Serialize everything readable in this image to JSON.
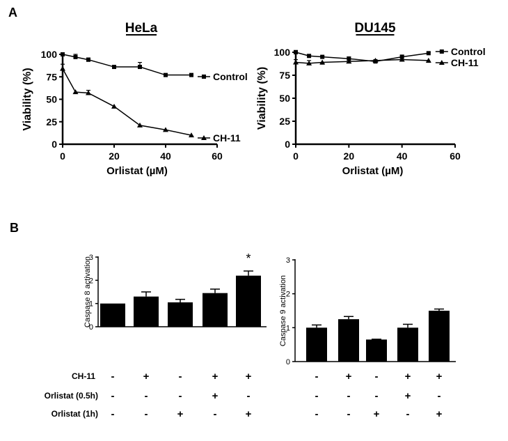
{
  "panels": {
    "a": "A",
    "b": "B"
  },
  "chart_data": [
    {
      "type": "line",
      "title": "HeLa",
      "xlabel": "Orlistat (µM)",
      "ylabel": "Viability (%)",
      "xlim": [
        0,
        60
      ],
      "ylim": [
        0,
        100
      ],
      "xticks": [
        "0",
        "20",
        "40",
        "60"
      ],
      "yticks": [
        "0",
        "25",
        "50",
        "75",
        "100"
      ],
      "series": [
        {
          "name": "Control",
          "marker": "square",
          "x": [
            0,
            5,
            10,
            20,
            30,
            40,
            50
          ],
          "y": [
            100,
            97,
            94,
            86,
            86,
            77,
            77
          ],
          "err": [
            0,
            3,
            2,
            1.5,
            5,
            1,
            1
          ]
        },
        {
          "name": "CH-11",
          "marker": "triangle",
          "x": [
            0,
            5,
            10,
            20,
            30,
            40,
            50
          ],
          "y": [
            84,
            58,
            57,
            42,
            21,
            16,
            10
          ],
          "err": [
            5,
            1,
            3,
            1,
            1,
            1,
            1
          ]
        }
      ]
    },
    {
      "type": "line",
      "title": "DU145",
      "xlabel": "Orlistat (µM)",
      "ylabel": "Viability (%)",
      "xlim": [
        0,
        60
      ],
      "ylim": [
        0,
        100
      ],
      "xticks": [
        "0",
        "20",
        "40",
        "60"
      ],
      "yticks": [
        "0",
        "25",
        "50",
        "75",
        "100"
      ],
      "series": [
        {
          "name": "Control",
          "marker": "square",
          "x": [
            0,
            5,
            10,
            20,
            30,
            40,
            50
          ],
          "y": [
            100,
            96,
            95,
            93,
            90,
            95,
            99
          ],
          "err": [
            2,
            1,
            1,
            2,
            2,
            2,
            1
          ]
        },
        {
          "name": "CH-11",
          "marker": "triangle",
          "x": [
            0,
            5,
            10,
            20,
            30,
            40,
            50
          ],
          "y": [
            89,
            88,
            89,
            90,
            91,
            92,
            91
          ],
          "err": [
            3,
            3,
            2,
            3,
            1,
            3,
            2
          ]
        }
      ]
    },
    {
      "type": "bar",
      "ylabel": "Caspase 8 activation",
      "ylim": [
        0,
        3
      ],
      "yticks": [
        "0",
        "1",
        "2",
        "3"
      ],
      "values": [
        1.0,
        1.3,
        1.05,
        1.45,
        2.2
      ],
      "errors": [
        0,
        0.2,
        0.13,
        0.17,
        0.2
      ],
      "annotations": [
        {
          "bar": 4,
          "text": "*"
        }
      ]
    },
    {
      "type": "bar",
      "ylabel": "Caspase 9 activation",
      "ylim": [
        0,
        3
      ],
      "yticks": [
        "0",
        "1",
        "2",
        "3"
      ],
      "values": [
        1.0,
        1.25,
        0.65,
        1.0,
        1.5
      ],
      "errors": [
        0.08,
        0.08,
        0.01,
        0.1,
        0.05
      ]
    }
  ],
  "conditions": {
    "rows": [
      {
        "label": "CH-11",
        "signs": [
          "-",
          "+",
          "-",
          "+",
          "+"
        ]
      },
      {
        "label": "Orlistat (0.5h)",
        "signs": [
          "-",
          "-",
          "-",
          "+",
          "-"
        ]
      },
      {
        "label": "Orlistat (1h)",
        "signs": [
          "-",
          "-",
          "+",
          "-",
          "+"
        ]
      }
    ]
  }
}
